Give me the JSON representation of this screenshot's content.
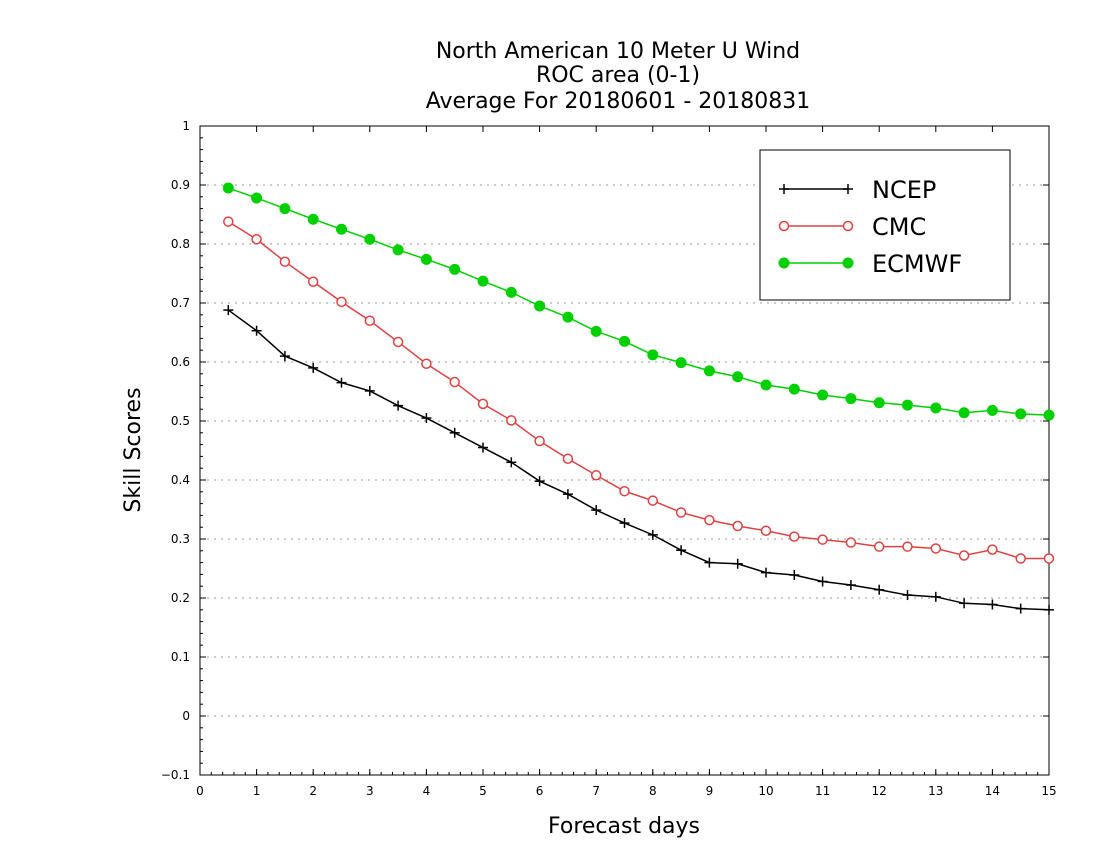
{
  "chart_data": {
    "type": "line",
    "title": [
      "North American 10 Meter U Wind",
      "ROC area (0-1)",
      "Average For 20180601 - 20180831"
    ],
    "xlabel": "Forecast days",
    "ylabel": "Skill Scores",
    "xlim": [
      0,
      15
    ],
    "ylim": [
      -0.1,
      1
    ],
    "xticks": [
      0,
      1,
      2,
      3,
      4,
      5,
      6,
      7,
      8,
      9,
      10,
      11,
      12,
      13,
      14,
      15
    ],
    "xtick_labels": [
      "0",
      "1",
      "2",
      "3",
      "4",
      "5",
      "6",
      "7",
      "8",
      "9",
      "10",
      "11",
      "12",
      "13",
      "14",
      "15"
    ],
    "yticks": [
      -0.1,
      0,
      0.1,
      0.2,
      0.3,
      0.4,
      0.5,
      0.6,
      0.7,
      0.8,
      0.9,
      1
    ],
    "ytick_labels": [
      "−0.1",
      "0",
      "0.1",
      "0.2",
      "0.3",
      "0.4",
      "0.5",
      "0.6",
      "0.7",
      "0.8",
      "0.9",
      "1"
    ],
    "grid": true,
    "legend_position": "top-right",
    "x": [
      0.5,
      1,
      1.5,
      2,
      2.5,
      3,
      3.5,
      4,
      4.5,
      5,
      5.5,
      6,
      6.5,
      7,
      7.5,
      8,
      8.5,
      9,
      9.5,
      10,
      10.5,
      11,
      11.5,
      12,
      12.5,
      13,
      13.5,
      14,
      14.5,
      15
    ],
    "series": [
      {
        "name": "NCEP",
        "color": "#000000",
        "marker": "plus",
        "values": [
          0.688,
          0.653,
          0.61,
          0.59,
          0.565,
          0.551,
          0.526,
          0.505,
          0.48,
          0.455,
          0.43,
          0.398,
          0.376,
          0.349,
          0.327,
          0.307,
          0.281,
          0.26,
          0.258,
          0.243,
          0.239,
          0.228,
          0.222,
          0.214,
          0.205,
          0.202,
          0.191,
          0.189,
          0.182,
          0.18
        ]
      },
      {
        "name": "CMC",
        "color": "#e04040",
        "marker": "open-circle",
        "values": [
          0.838,
          0.808,
          0.77,
          0.736,
          0.702,
          0.67,
          0.634,
          0.597,
          0.566,
          0.529,
          0.501,
          0.466,
          0.436,
          0.408,
          0.381,
          0.365,
          0.345,
          0.332,
          0.322,
          0.314,
          0.304,
          0.299,
          0.294,
          0.287,
          0.287,
          0.284,
          0.272,
          0.282,
          0.267,
          0.267
        ]
      },
      {
        "name": "ECMWF",
        "color": "#00d000",
        "marker": "filled-circle",
        "values": [
          0.895,
          0.878,
          0.86,
          0.842,
          0.825,
          0.808,
          0.79,
          0.774,
          0.757,
          0.737,
          0.718,
          0.695,
          0.676,
          0.652,
          0.635,
          0.612,
          0.599,
          0.585,
          0.575,
          0.561,
          0.554,
          0.544,
          0.538,
          0.531,
          0.527,
          0.522,
          0.514,
          0.518,
          0.512,
          0.51
        ]
      }
    ]
  }
}
